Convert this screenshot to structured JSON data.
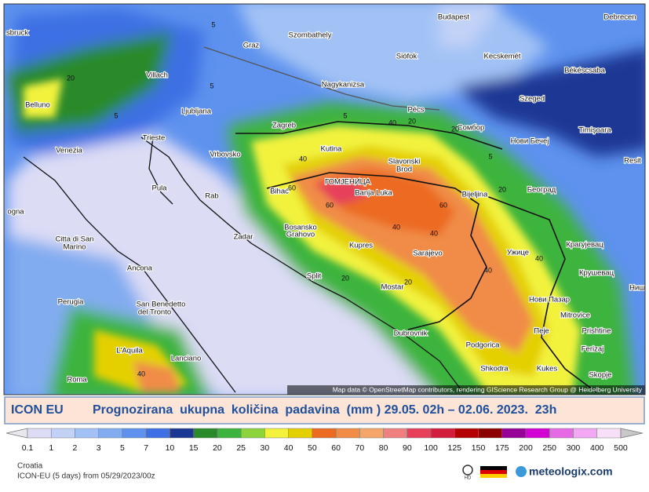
{
  "map": {
    "cities": [
      "Budapest",
      "Debrecen",
      "sbruck",
      "Szombathely",
      "Graz",
      "Siófok",
      "Kecskemét",
      "Villach",
      "Nagykanizsa",
      "Békéscsaba",
      "Belluno",
      "Ljubljana",
      "Szeged",
      "Pécs",
      "Zagreb",
      "Сомбор",
      "Timişoara",
      "Trieste",
      "Нови Бечеј",
      "Venezia",
      "Kutina",
      "Vrbovsko",
      "Slavonski",
      "Brod",
      "Resit",
      "Pula",
      "Rab",
      "Bihać",
      "ГОМЈЕНИЦА",
      "Banja Luka",
      "Bijeljina",
      "Београд",
      "ogna",
      "Zadar",
      "Bosansko",
      "Grahovo",
      "Citta di San",
      "Marino",
      "Kupres",
      "Sarajevo",
      "Ужице",
      "Крагујевац",
      "Ancona",
      "Split",
      "Крушевац",
      "Perugia",
      "Mostar",
      "Нови Пазар",
      "Ниш",
      "San Benedetto",
      "del Tronto",
      "Mitrovice",
      "Пеје",
      "Prishtine",
      "Dubrovnik",
      "Podgorica",
      "Ferizaj",
      "L'Aquila",
      "Shkodra",
      "Kukes",
      "Skopje",
      "Lanciano",
      "Roma"
    ],
    "contour_labels": [
      5,
      5,
      20,
      5,
      5,
      20,
      40,
      20,
      40,
      60,
      60,
      60,
      40,
      40,
      20,
      40,
      20,
      5,
      40,
      20,
      40
    ],
    "attribution": "Map data © OpenStreetMap contributors, rendering GIScience Research Group @ Heidelberg University"
  },
  "banner": {
    "model": "ICON EU",
    "title": "Prognozirana  ukupna  količina  padavina  (mm ) 29.05. 02h – 02.06. 2023.  23h"
  },
  "legend": {
    "values": [
      0.1,
      1,
      2,
      3,
      5,
      7,
      10,
      15,
      20,
      25,
      30,
      40,
      50,
      60,
      70,
      80,
      90,
      100,
      125,
      150,
      175,
      200,
      250,
      300,
      400,
      500
    ],
    "colors": [
      "#dcdcf5",
      "#c2d2f7",
      "#a2c2f5",
      "#82acf0",
      "#5e92ee",
      "#3d70e4",
      "#1b3794",
      "#2a8a2a",
      "#3db43d",
      "#8dd33c",
      "#f2f23c",
      "#e4d000",
      "#ec6a22",
      "#f08c46",
      "#f6a568",
      "#f08080",
      "#e6405a",
      "#d21e3c",
      "#b40000",
      "#8c0000",
      "#960096",
      "#d200d2",
      "#e66ae6",
      "#f2a8f2",
      "#f7e0f7"
    ]
  },
  "footer": {
    "region": "Croatia",
    "run": "ICON-EU (5 days) from 05/29/2023/00z",
    "hd": "HD",
    "brand": "meteologix.com"
  }
}
